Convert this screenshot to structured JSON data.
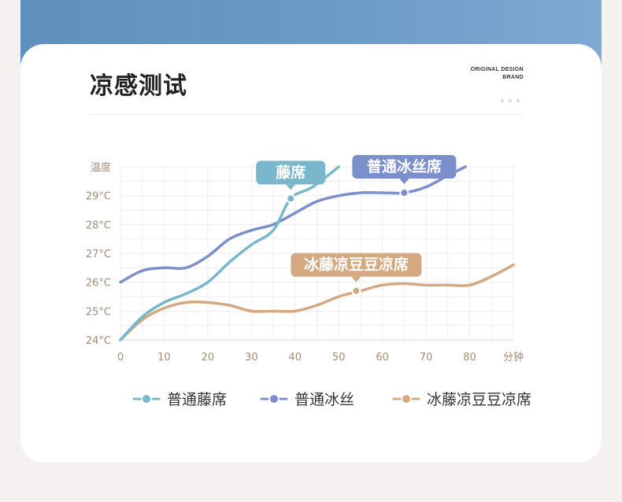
{
  "header": {
    "title": "凉感测试",
    "brand_line1": "ORIGINAL DESIGN",
    "brand_line2": "BRAND"
  },
  "colors": {
    "rattan": "#7ab6cc",
    "ice_silk": "#7c8fcd",
    "bean": "#d4a880",
    "grid": "#eeeeee",
    "tick_text": "#a08c78"
  },
  "chart_data": {
    "type": "line",
    "ylabel": "温度",
    "xlabel": "分钟",
    "xlim": [
      0,
      90
    ],
    "ylim": [
      24,
      30
    ],
    "x_ticks": [
      0,
      10,
      20,
      30,
      40,
      50,
      60,
      70,
      80
    ],
    "y_ticks": [
      "24°C",
      "25°C",
      "26°C",
      "27°C",
      "28°C",
      "29°C"
    ],
    "y_tick_values": [
      24,
      25,
      26,
      27,
      28,
      29
    ],
    "grid": true,
    "legend_position": "bottom",
    "series": [
      {
        "name": "普通藤席",
        "callout": "藤席",
        "marker": [
          39,
          28.9
        ],
        "x": [
          0,
          5,
          10,
          15,
          20,
          25,
          30,
          35,
          39,
          44,
          50
        ],
        "y": [
          24.0,
          24.8,
          25.3,
          25.6,
          26.0,
          26.7,
          27.3,
          27.8,
          28.9,
          29.3,
          30.0
        ]
      },
      {
        "name": "普通冰丝",
        "callout": "普通冰丝席",
        "marker": [
          65,
          29.1
        ],
        "x": [
          0,
          5,
          10,
          15,
          20,
          25,
          30,
          35,
          40,
          45,
          50,
          55,
          60,
          65,
          70,
          75,
          79
        ],
        "y": [
          26.0,
          26.4,
          26.5,
          26.5,
          26.9,
          27.5,
          27.8,
          28.0,
          28.4,
          28.8,
          29.0,
          29.1,
          29.1,
          29.1,
          29.3,
          29.7,
          30.0
        ]
      },
      {
        "name": "冰藤凉豆豆凉席",
        "callout": "冰藤凉豆豆凉席",
        "marker": [
          54,
          25.7
        ],
        "x": [
          0,
          5,
          10,
          15,
          20,
          25,
          30,
          35,
          40,
          45,
          50,
          55,
          60,
          65,
          70,
          75,
          80,
          85,
          90
        ],
        "y": [
          24.0,
          24.7,
          25.1,
          25.3,
          25.3,
          25.2,
          25.0,
          25.0,
          25.0,
          25.2,
          25.5,
          25.7,
          25.9,
          25.95,
          25.9,
          25.9,
          25.9,
          26.2,
          26.6
        ]
      }
    ]
  }
}
